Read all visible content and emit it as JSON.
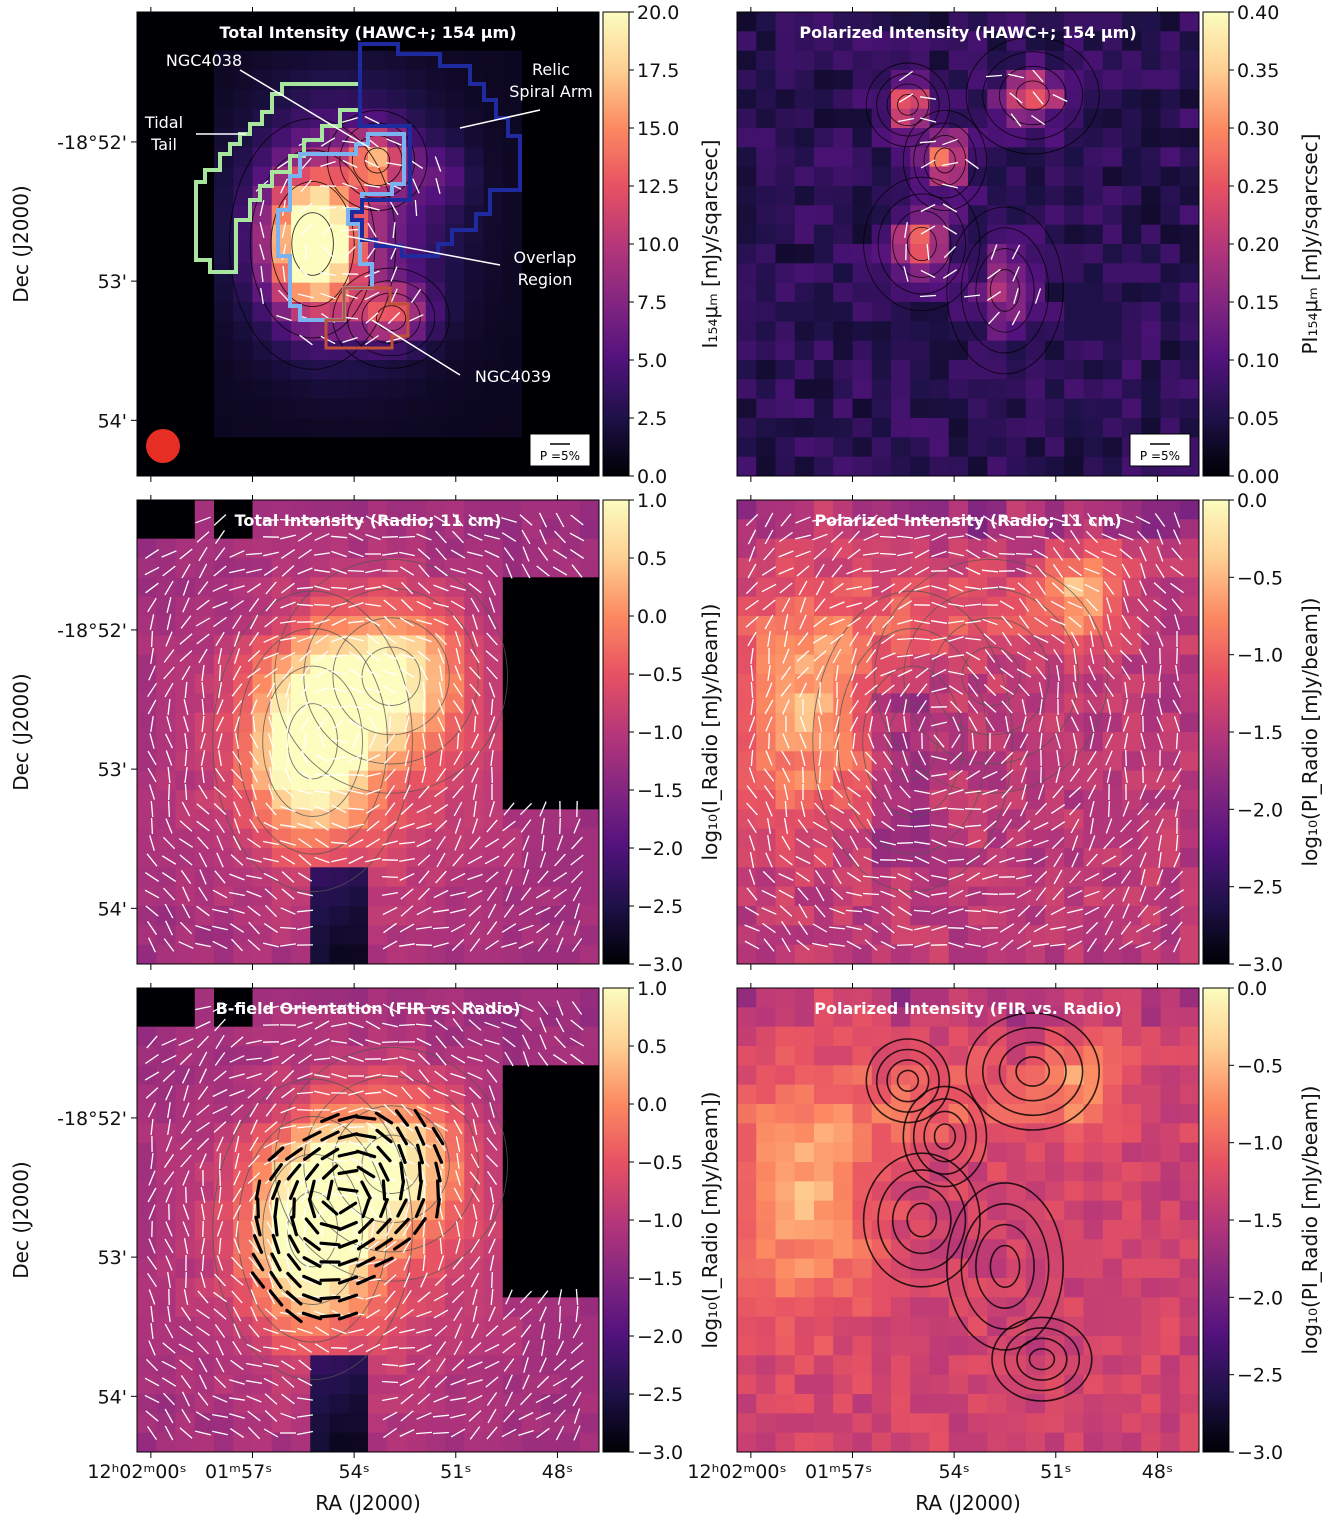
{
  "figure": {
    "ra_label": "RA (J2000)",
    "dec_label": "Dec (J2000)",
    "ra_ticks": [
      "12ʰ02ᵐ00ˢ",
      "01ᵐ57ˢ",
      "54ˢ",
      "51ˢ",
      "48ˢ"
    ],
    "dec_ticks": [
      "-18°52'",
      "53'",
      "54'"
    ],
    "vector_scale_label": "P =5%"
  },
  "annotations": {
    "ngc4038": "NGC4038",
    "tidal": "Tidal",
    "tail": "Tail",
    "relic": "Relic",
    "spiral_arm": "Spiral Arm",
    "overlap": "Overlap",
    "region": "Region",
    "ngc4039": "NGC4039"
  },
  "colors": {
    "colormap": [
      "#000004",
      "#1d1147",
      "#51127c",
      "#832681",
      "#b73779",
      "#e75263",
      "#fc8961",
      "#fecf92",
      "#fcfdbf"
    ],
    "tidal_tail": "#a8e6a0",
    "ngc4038": "#7ab3f0",
    "relic_arm": "#1f2a9e",
    "ngc4039": "#c0503a",
    "beam": "#e62e24"
  },
  "chart_data": [
    {
      "type": "heatmap",
      "title": "Total Intensity (HAWC+; 154 μm)",
      "colorbar_label": "I₁₅₄μₘ [mJy/sqarcsec]",
      "colorbar_range": [
        0.0,
        20.0
      ],
      "colorbar_ticks": [
        "0.0",
        "2.5",
        "5.0",
        "7.5",
        "10.0",
        "12.5",
        "15.0",
        "17.5",
        "20.0"
      ],
      "vectors": "white",
      "contours": "black"
    },
    {
      "type": "heatmap",
      "title": "Polarized Intensity (HAWC+; 154 μm)",
      "colorbar_label": "PI₁₅₄μₘ [mJy/sqarcsec]",
      "colorbar_range": [
        0.0,
        0.4
      ],
      "colorbar_ticks": [
        "0.00",
        "0.05",
        "0.10",
        "0.15",
        "0.20",
        "0.25",
        "0.30",
        "0.35",
        "0.40"
      ],
      "vectors": "white",
      "contours": "black"
    },
    {
      "type": "heatmap",
      "title": "Total Intensity (Radio; 11 cm)",
      "colorbar_label": "log₁₀(I_Radio [mJy/beam])",
      "colorbar_range": [
        -3.0,
        1.0
      ],
      "colorbar_ticks": [
        "−3.0",
        "−2.5",
        "−2.0",
        "−1.5",
        "−1.0",
        "−0.5",
        "0.0",
        "0.5",
        "1.0"
      ],
      "vectors": "white",
      "contours": "gray"
    },
    {
      "type": "heatmap",
      "title": "Polarized Intensity (Radio; 11 cm)",
      "colorbar_label": "log₁₀(PI_Radio [mJy/beam])",
      "colorbar_range": [
        -3.0,
        0.0
      ],
      "colorbar_ticks": [
        "−3.0",
        "−2.5",
        "−2.0",
        "−1.5",
        "−1.0",
        "−0.5",
        "0.0"
      ],
      "vectors": "white",
      "contours": "gray"
    },
    {
      "type": "heatmap",
      "title": "B-field Orientation (FIR vs. Radio)",
      "colorbar_label": "log₁₀(I_Radio [mJy/beam])",
      "colorbar_range": [
        -3.0,
        1.0
      ],
      "colorbar_ticks": [
        "−3.0",
        "−2.5",
        "−2.0",
        "−1.5",
        "−1.0",
        "−0.5",
        "0.0",
        "0.5",
        "1.0"
      ],
      "vectors": "white (radio), black (FIR)",
      "contours": "gray"
    },
    {
      "type": "heatmap",
      "title": "Polarized Intensity (FIR vs. Radio)",
      "colorbar_label": "log₁₀(PI_Radio [mJy/beam])",
      "colorbar_range": [
        -3.0,
        0.0
      ],
      "colorbar_ticks": [
        "−3.0",
        "−2.5",
        "−2.0",
        "−1.5",
        "−1.0",
        "−0.5",
        "0.0"
      ],
      "vectors": "none",
      "contours": "black (FIR PI)"
    }
  ]
}
